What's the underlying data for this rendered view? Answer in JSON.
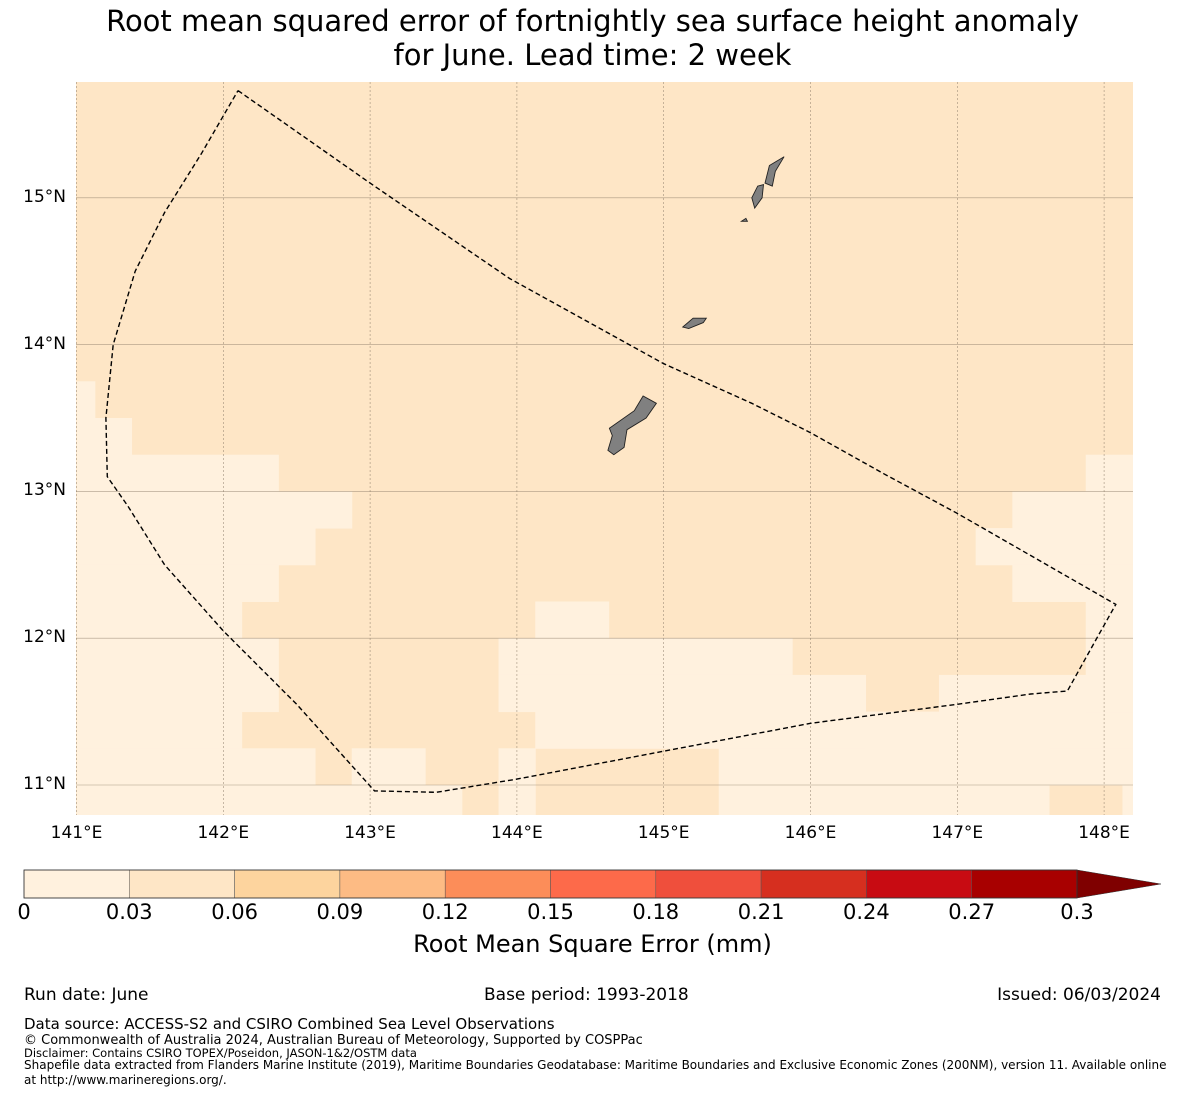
{
  "title": {
    "line1": "Root mean squared error of fortnightly sea surface height anomaly",
    "line2": "for June. Lead time: 2 week"
  },
  "map": {
    "lon_range": [
      140.99,
      148.2
    ],
    "lat_range": [
      10.8,
      15.8
    ],
    "lat_labels": [
      "15°N",
      "14°N",
      "13°N",
      "12°N",
      "11°N"
    ],
    "lat_values": [
      15,
      14,
      13,
      12,
      11
    ],
    "lon_labels": [
      "141°E",
      "142°E",
      "143°E",
      "144°E",
      "145°E",
      "146°E",
      "147°E",
      "148°E"
    ],
    "lon_values": [
      141,
      142,
      143,
      144,
      145,
      146,
      147,
      148
    ],
    "colors": {
      "low": "#fff1de",
      "mid": "#fee6c6",
      "land": "#808080",
      "grid": "#8a7a66"
    },
    "low_cells": [
      [
        141.0,
        141.125,
        13.5,
        13.75
      ],
      [
        141.0,
        141.375,
        13.25,
        13.5
      ],
      [
        141.0,
        142.375,
        13.0,
        13.25
      ],
      [
        141.0,
        142.875,
        12.75,
        13.0
      ],
      [
        141.0,
        142.625,
        12.5,
        12.75
      ],
      [
        141.0,
        142.375,
        12.25,
        12.5
      ],
      [
        141.0,
        142.125,
        12.0,
        12.25
      ],
      [
        141.0,
        142.375,
        11.5,
        12.0
      ],
      [
        141.0,
        142.125,
        11.25,
        11.5
      ],
      [
        141.0,
        142.625,
        11.0,
        11.25
      ],
      [
        141.0,
        142.875,
        10.75,
        11.0
      ],
      [
        142.875,
        143.375,
        11.0,
        11.25
      ],
      [
        142.875,
        143.625,
        10.75,
        11.0
      ],
      [
        143.875,
        144.125,
        10.75,
        11.0
      ],
      [
        144.125,
        144.625,
        12.0,
        12.25
      ],
      [
        143.875,
        145.875,
        11.75,
        12.0
      ],
      [
        143.875,
        146.375,
        11.5,
        11.75
      ],
      [
        144.125,
        146.375,
        11.25,
        11.5
      ],
      [
        143.875,
        144.125,
        11.0,
        11.25
      ],
      [
        145.375,
        147.625,
        11.0,
        11.25
      ],
      [
        145.375,
        147.625,
        10.75,
        11.0
      ],
      [
        148.125,
        148.2,
        10.75,
        11.0
      ],
      [
        146.875,
        147.875,
        11.5,
        11.75
      ],
      [
        146.375,
        148.2,
        11.25,
        11.5
      ],
      [
        147.625,
        148.2,
        11.0,
        11.25
      ],
      [
        147.875,
        148.2,
        11.5,
        11.75
      ],
      [
        147.875,
        148.2,
        13.0,
        13.25
      ],
      [
        147.375,
        148.2,
        12.75,
        13.0
      ],
      [
        147.125,
        148.2,
        12.5,
        12.75
      ],
      [
        147.375,
        148.2,
        12.25,
        12.5
      ],
      [
        147.875,
        148.2,
        11.75,
        12.25
      ]
    ],
    "region_boundary": [
      [
        142.1,
        15.73
      ],
      [
        143.0,
        15.1
      ],
      [
        143.95,
        14.45
      ],
      [
        145.0,
        13.87
      ],
      [
        145.6,
        13.6
      ],
      [
        146.0,
        13.4
      ],
      [
        146.5,
        13.12
      ],
      [
        147.0,
        12.85
      ],
      [
        148.08,
        12.23
      ],
      [
        147.95,
        12.0
      ],
      [
        147.75,
        11.64
      ],
      [
        147.5,
        11.62
      ],
      [
        147.0,
        11.55
      ],
      [
        146.0,
        11.42
      ],
      [
        145.0,
        11.23
      ],
      [
        144.0,
        11.04
      ],
      [
        143.45,
        10.95
      ],
      [
        143.03,
        10.96
      ],
      [
        142.5,
        11.55
      ],
      [
        142.0,
        12.05
      ],
      [
        141.6,
        12.5
      ],
      [
        141.35,
        12.9
      ],
      [
        141.21,
        13.1
      ],
      [
        141.2,
        13.5
      ],
      [
        141.25,
        14.0
      ],
      [
        141.4,
        14.5
      ],
      [
        141.6,
        14.9
      ],
      [
        141.85,
        15.3
      ],
      [
        142.1,
        15.73
      ]
    ],
    "islands": [
      [
        [
          144.63,
          13.43
        ],
        [
          144.8,
          13.55
        ],
        [
          144.86,
          13.65
        ],
        [
          144.95,
          13.6
        ],
        [
          144.88,
          13.5
        ],
        [
          144.75,
          13.42
        ],
        [
          144.73,
          13.3
        ],
        [
          144.66,
          13.25
        ],
        [
          144.62,
          13.28
        ],
        [
          144.65,
          13.38
        ]
      ],
      [
        [
          145.13,
          14.12
        ],
        [
          145.2,
          14.18
        ],
        [
          145.29,
          14.18
        ],
        [
          145.27,
          14.15
        ],
        [
          145.17,
          14.11
        ]
      ],
      [
        [
          145.6,
          15.0
        ],
        [
          145.64,
          15.08
        ],
        [
          145.68,
          15.09
        ],
        [
          145.67,
          15.0
        ],
        [
          145.62,
          14.93
        ]
      ],
      [
        [
          145.69,
          15.1
        ],
        [
          145.72,
          15.22
        ],
        [
          145.82,
          15.28
        ],
        [
          145.76,
          15.18
        ],
        [
          145.74,
          15.08
        ]
      ],
      [
        [
          145.53,
          14.84
        ],
        [
          145.56,
          14.86
        ],
        [
          145.57,
          14.84
        ]
      ]
    ]
  },
  "colorbar": {
    "label": "Root Mean Square Error (mm)",
    "ticks": [
      "0",
      "0.03",
      "0.06",
      "0.09",
      "0.12",
      "0.15",
      "0.18",
      "0.21",
      "0.24",
      "0.27",
      "0.3"
    ],
    "colors": [
      "#fff1de",
      "#fee6c6",
      "#fdd49e",
      "#fdbb84",
      "#fc8d59",
      "#fd6a4a",
      "#ef4f3c",
      "#d62f1f",
      "#c80b12",
      "#a80000"
    ],
    "extend_color": "#7f0000"
  },
  "footer": {
    "run_date": "Run date: June",
    "base_period": "Base period: 1993-2018",
    "issued": "Issued: 06/03/2024",
    "data_source": "Data source: ACCESS-S2 and CSIRO Combined Sea Level Observations",
    "copyright": "© Commonwealth of Australia 2024, Australian Bureau of Meteorology, Supported by COSPPac",
    "disclaimer": "Disclaimer: Contains CSIRO TOPEX/Poseidon, JASON-1&2/OSTM data",
    "shapefile_line1": "Shapefile data extracted from Flanders Marine Institute (2019), Maritime Boundaries Geodatabase: Maritime Boundaries and Exclusive Economic Zones (200NM), version 11. Available online",
    "shapefile_line2": "at http://www.marineregions.org/."
  }
}
